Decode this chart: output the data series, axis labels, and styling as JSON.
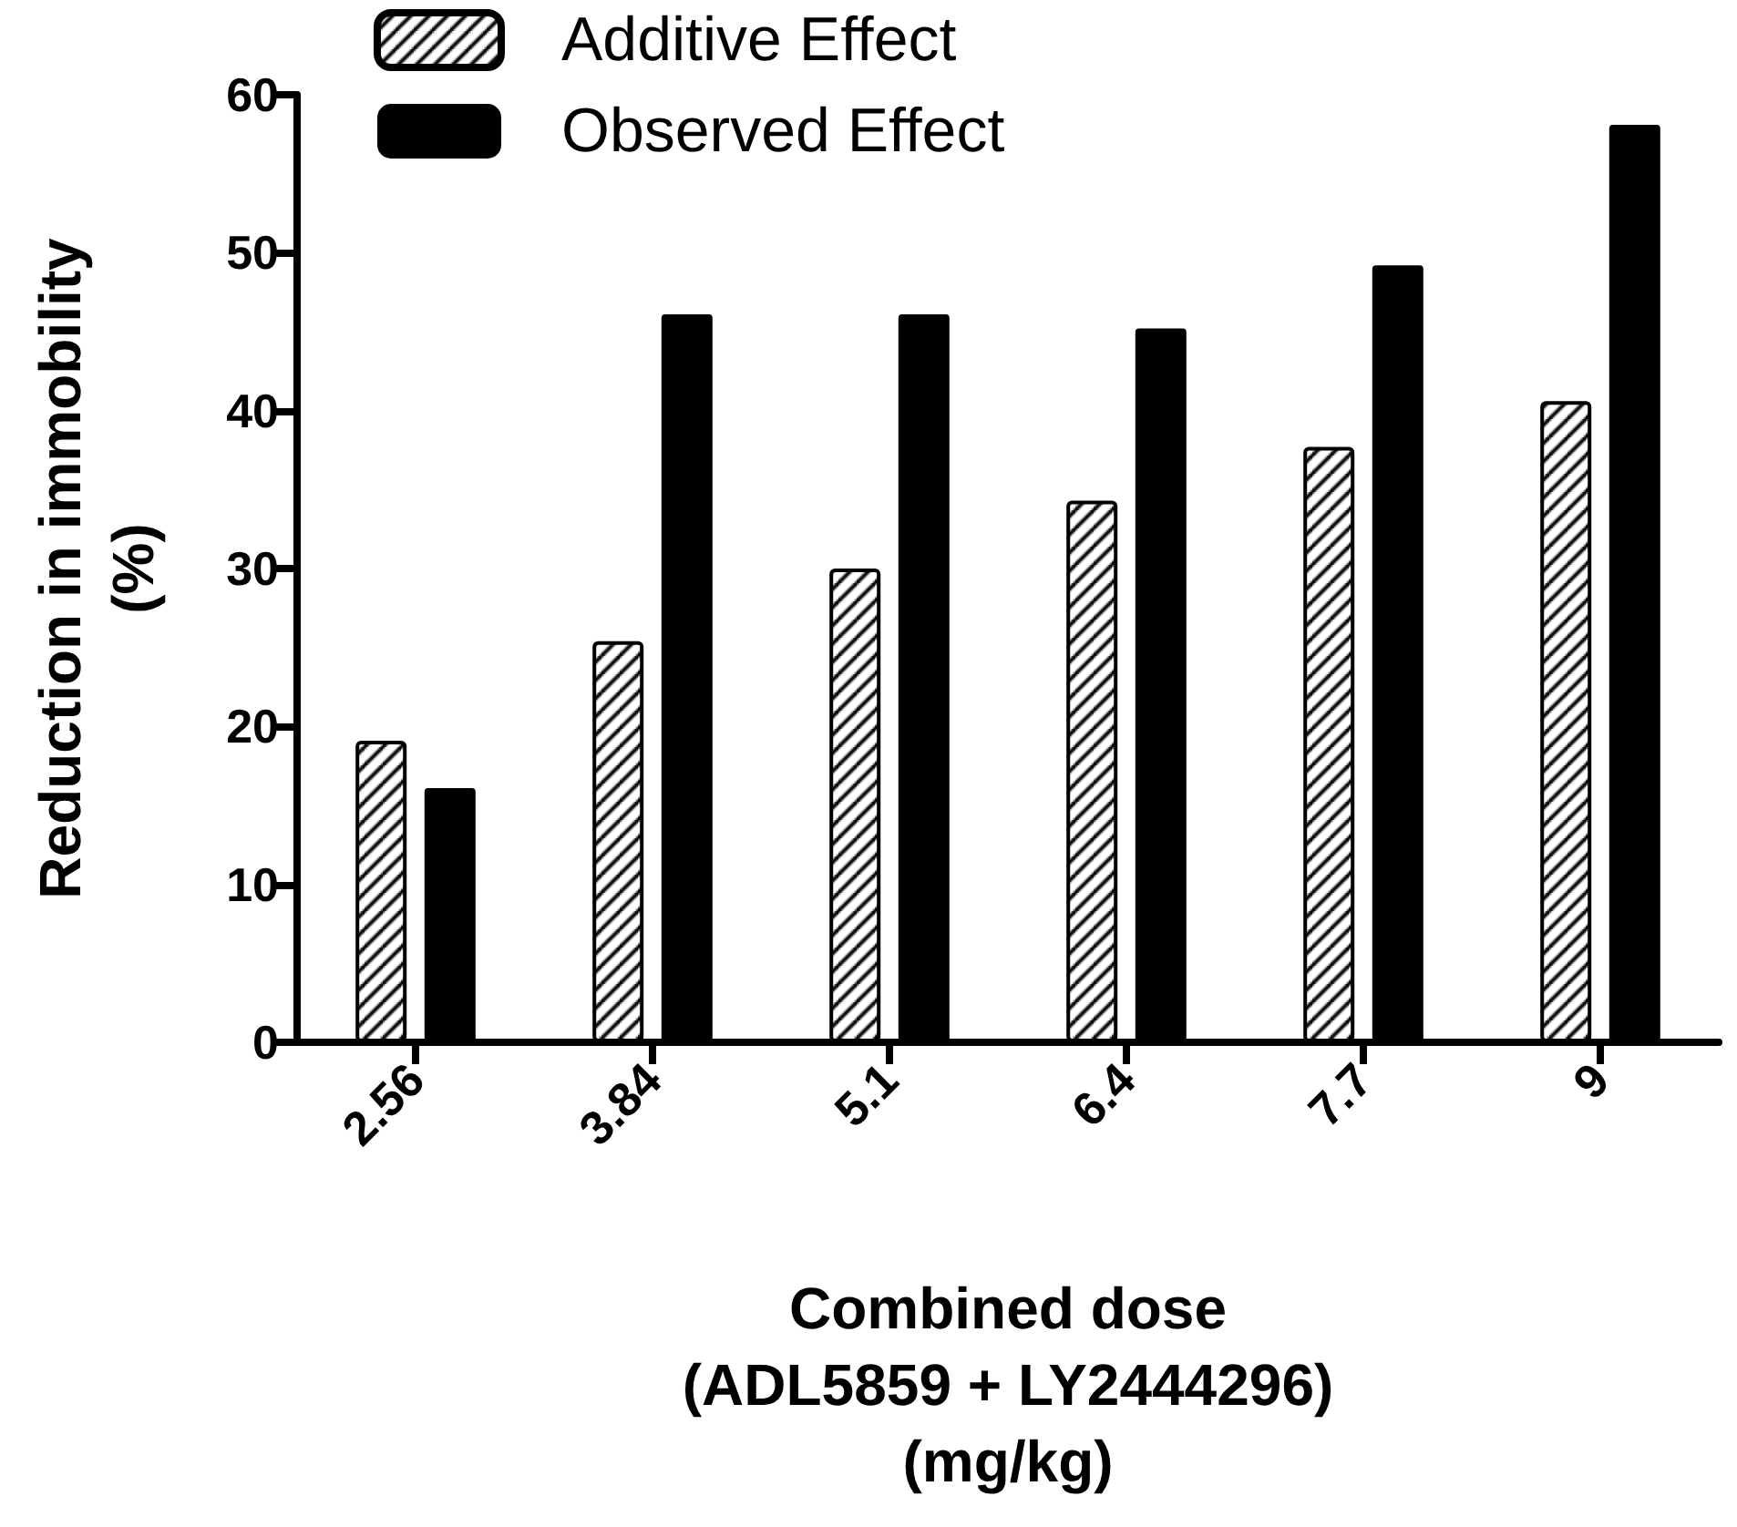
{
  "chart_data": {
    "type": "bar",
    "categories": [
      "2.56",
      "3.84",
      "5.1",
      "6.4",
      "7.7",
      "9"
    ],
    "series": [
      {
        "name": "Additive Effect",
        "color": "#000000",
        "values": [
          19.1,
          25.4,
          30,
          34.3,
          37.7,
          40.6
        ]
      },
      {
        "name": "Observed Effect",
        "color": "#000000",
        "values": [
          16.1,
          46.1,
          46.1,
          45.2,
          49.2,
          58.1
        ]
      }
    ],
    "xlabel": "Combined dose\n(ADL5859 + LY2444296)\n(mg/kg)",
    "ylabel": "Reduction in immobility\n(%)",
    "ylim": [
      0,
      60
    ],
    "yticks": [
      0,
      10,
      20,
      30,
      40,
      50,
      60
    ],
    "grid": false,
    "legend": "top left"
  }
}
